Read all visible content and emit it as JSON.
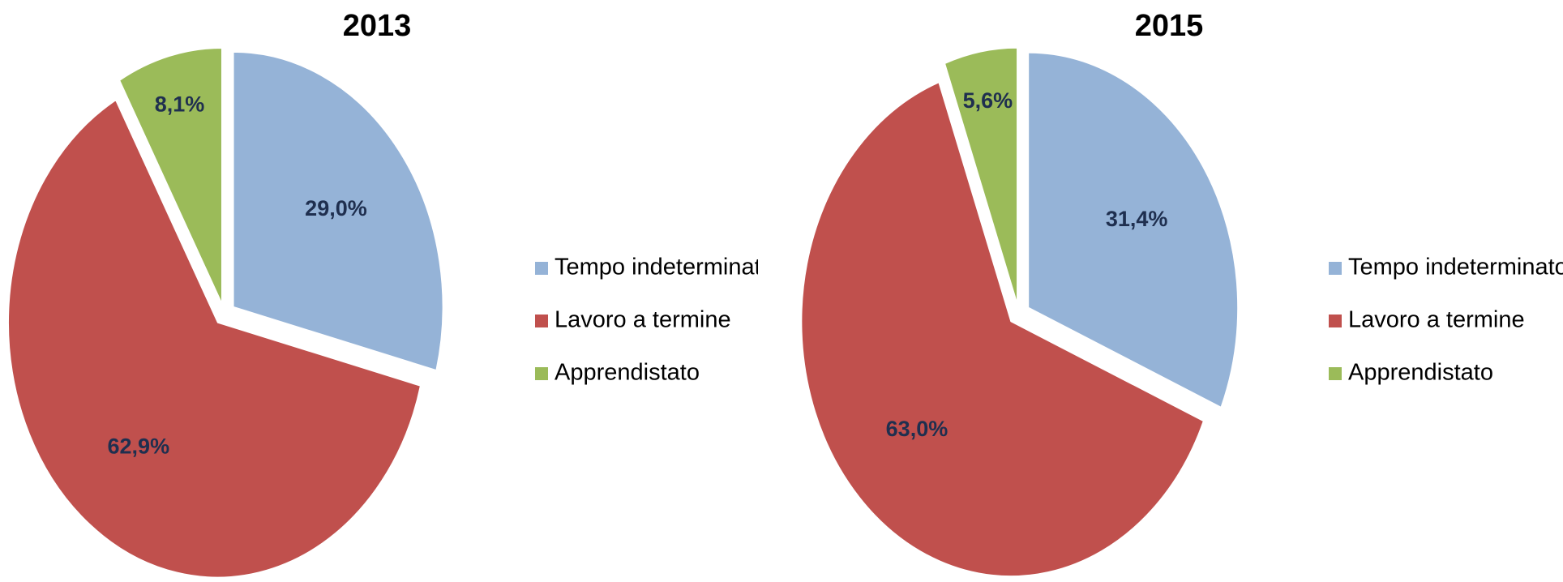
{
  "chart_data": [
    {
      "type": "pie",
      "title": "2013",
      "categories": [
        "Tempo indeterminato",
        "Lavoro a termine",
        "Apprendistato"
      ],
      "values": [
        29.0,
        62.9,
        8.1
      ],
      "value_labels": [
        "29,0%",
        "62,9%",
        "8,1%"
      ],
      "colors": [
        "#95b3d7",
        "#c0504d",
        "#9bbb59"
      ],
      "legend": "right"
    },
    {
      "type": "pie",
      "title": "2015",
      "categories": [
        "Tempo indeterminato",
        "Lavoro a termine",
        "Apprendistato"
      ],
      "values": [
        31.4,
        63.0,
        5.6
      ],
      "value_labels": [
        "31,4%",
        "63,0%",
        "5,6%"
      ],
      "colors": [
        "#95b3d7",
        "#c0504d",
        "#9bbb59"
      ],
      "legend": "right"
    }
  ]
}
